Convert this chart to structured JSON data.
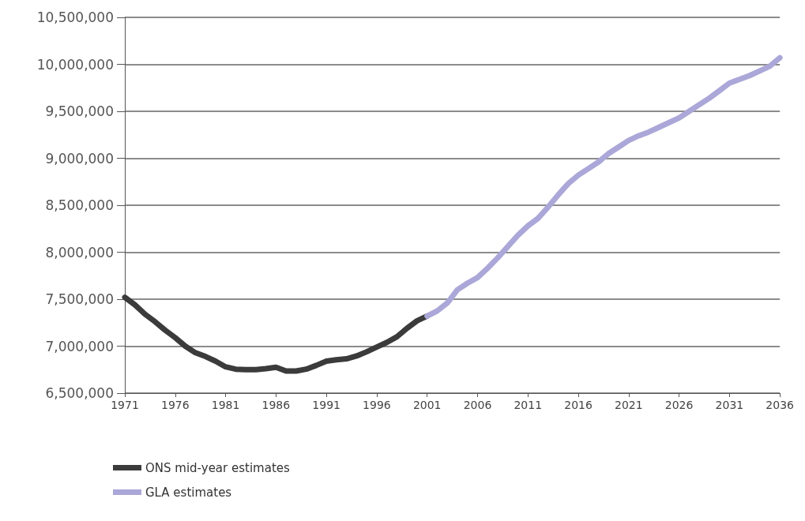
{
  "chart_data": {
    "type": "line",
    "series": [
      {
        "name": "ONS mid-year estimates",
        "color": "#3b3b3b",
        "x": [
          1971,
          1972,
          1973,
          1974,
          1975,
          1976,
          1977,
          1978,
          1979,
          1980,
          1981,
          1982,
          1983,
          1984,
          1985,
          1986,
          1987,
          1988,
          1989,
          1990,
          1991,
          1992,
          1993,
          1994,
          1995,
          1996,
          1997,
          1998,
          1999,
          2000,
          2001
        ],
        "values": [
          7520000,
          7440000,
          7340000,
          7260000,
          7170000,
          7090000,
          7000000,
          6930000,
          6890000,
          6840000,
          6780000,
          6755000,
          6750000,
          6750000,
          6760000,
          6775000,
          6735000,
          6735000,
          6755000,
          6795000,
          6840000,
          6855000,
          6865000,
          6895000,
          6940000,
          6990000,
          7040000,
          7100000,
          7190000,
          7270000,
          7320000
        ]
      },
      {
        "name": "GLA estimates",
        "color": "#aba7d8",
        "x": [
          2001,
          2002,
          2003,
          2004,
          2005,
          2006,
          2007,
          2008,
          2009,
          2010,
          2011,
          2012,
          2013,
          2014,
          2015,
          2016,
          2017,
          2018,
          2019,
          2020,
          2021,
          2022,
          2023,
          2024,
          2025,
          2026,
          2027,
          2028,
          2029,
          2030,
          2031,
          2032,
          2033,
          2034,
          2035,
          2036
        ],
        "values": [
          7320000,
          7375000,
          7460000,
          7600000,
          7670000,
          7730000,
          7830000,
          7940000,
          8060000,
          8180000,
          8280000,
          8360000,
          8480000,
          8610000,
          8730000,
          8820000,
          8890000,
          8960000,
          9050000,
          9120000,
          9190000,
          9240000,
          9280000,
          9330000,
          9380000,
          9430000,
          9500000,
          9570000,
          9640000,
          9720000,
          9800000,
          9840000,
          9880000,
          9930000,
          9980000,
          10070000
        ]
      }
    ],
    "xlim": [
      1971,
      2036
    ],
    "xticks": [
      1971,
      1976,
      1981,
      1986,
      1991,
      1996,
      2001,
      2006,
      2011,
      2016,
      2021,
      2026,
      2031,
      2036
    ],
    "ylim": [
      6500000,
      10500000
    ],
    "yticks": [
      {
        "value": 6500000,
        "label": "6,500,000"
      },
      {
        "value": 7000000,
        "label": "7,000,000"
      },
      {
        "value": 7500000,
        "label": "7,500,000"
      },
      {
        "value": 8000000,
        "label": "8,000,000"
      },
      {
        "value": 8500000,
        "label": "8,500,000"
      },
      {
        "value": 9000000,
        "label": "9,000,000"
      },
      {
        "value": 9500000,
        "label": "9,500,000"
      },
      {
        "value": 10000000,
        "label": "10,000,000"
      },
      {
        "value": 10500000,
        "label": "10,500,000"
      }
    ],
    "grid": "y",
    "legend": "bottom left",
    "marker": "none",
    "line_style": "solid"
  }
}
